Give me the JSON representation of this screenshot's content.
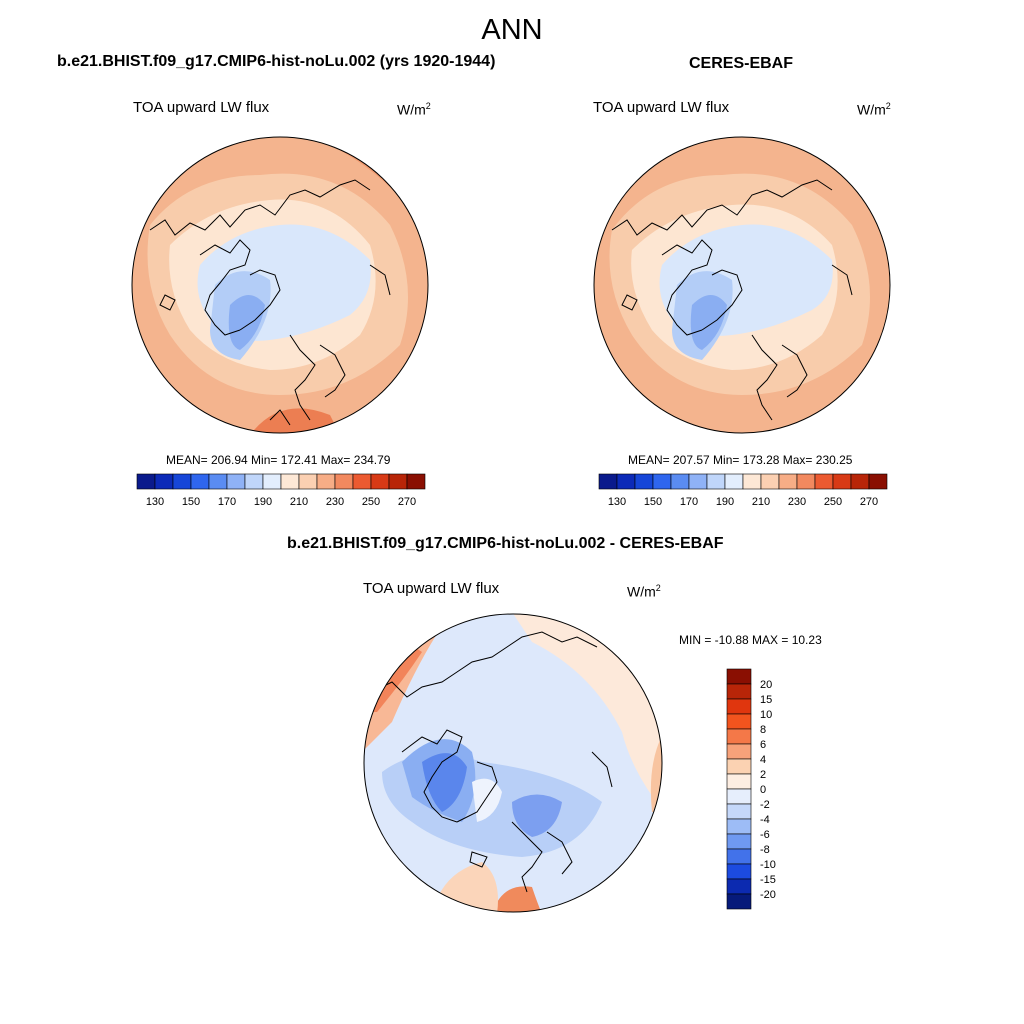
{
  "title": "ANN",
  "panels": [
    {
      "title": "b.e21.BHIST.f09_g17.CMIP6-hist-noLu.002 (yrs 1920-1944)",
      "variable": "TOA upward LW flux",
      "units_base": "W/m",
      "units_exp": "2",
      "stats": "MEAN= 206.94  Min= 172.41  Max= 234.79"
    },
    {
      "title": "CERES-EBAF",
      "variable": "TOA upward LW flux",
      "units_base": "W/m",
      "units_exp": "2",
      "stats": "MEAN= 207.57  Min= 173.28  Max= 230.25"
    },
    {
      "title": "b.e21.BHIST.f09_g17.CMIP6-hist-noLu.002 - CERES-EBAF",
      "variable": "TOA upward LW flux",
      "units_base": "W/m",
      "units_exp": "2",
      "stats": "MIN = -10.88 MAX =  10.23"
    }
  ],
  "abs_colorbar": {
    "labels": [
      "130",
      "150",
      "170",
      "190",
      "210",
      "230",
      "250",
      "270"
    ],
    "colors": [
      "#0a1a8c",
      "#0c2ab8",
      "#1646d8",
      "#2f66ee",
      "#5a8cf2",
      "#8fb2f6",
      "#c0d6fa",
      "#e3eefd",
      "#fde8d6",
      "#fbd0b2",
      "#f7ad86",
      "#f2895f",
      "#ec5a31",
      "#d83a16",
      "#b82508",
      "#8a0f02"
    ]
  },
  "diff_colorbar": {
    "labels": [
      "20",
      "15",
      "10",
      "8",
      "6",
      "4",
      "2",
      "0",
      "-2",
      "-4",
      "-6",
      "-8",
      "-10",
      "-15",
      "-20"
    ],
    "colors": [
      "#8a0f02",
      "#b82508",
      "#e0360e",
      "#f2541e",
      "#f47848",
      "#f7a27a",
      "#fbd2b2",
      "#fdeee2",
      "#e6eefc",
      "#c5d8fa",
      "#9dbcf6",
      "#6f99f1",
      "#4272ea",
      "#1c4be0",
      "#0c2ab0",
      "#061a7a"
    ]
  }
}
